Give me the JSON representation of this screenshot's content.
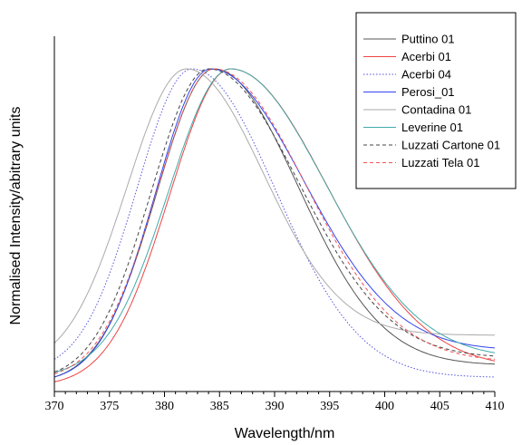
{
  "chart_data": {
    "type": "line",
    "title": "",
    "xlabel": "Wavelength/nm",
    "ylabel": "Normalised Intensity/abitrary units",
    "xlim": [
      370,
      410
    ],
    "ylim": [
      0,
      1
    ],
    "x_ticks": [
      370,
      375,
      380,
      385,
      390,
      395,
      400,
      405,
      410
    ],
    "y_tick_labels_shown": false,
    "grid": false,
    "legend_position": "top-right",
    "series": [
      {
        "name": "Puttino 01",
        "color": "#555555",
        "dash": "solid",
        "peak": 384.5,
        "wl": 5.2,
        "wr": 7.6,
        "y370": 0.045,
        "y410": 0.085
      },
      {
        "name": "Acerbi 01",
        "color": "#ee4444",
        "dash": "solid",
        "peak": 386.0,
        "wl": 5.5,
        "wr": 8.8,
        "y370": 0.03,
        "y410": 0.095
      },
      {
        "name": "Acerbi 04",
        "color": "#5555dd",
        "dash": "dotted",
        "peak": 382.5,
        "wl": 5.0,
        "wr": 7.6,
        "y370": 0.1,
        "y410": 0.045
      },
      {
        "name": "Perosi_01",
        "color": "#3344ee",
        "dash": "solid",
        "peak": 384.2,
        "wl": 5.0,
        "wr": 8.4,
        "y370": 0.045,
        "y410": 0.135
      },
      {
        "name": "Contadina 01",
        "color": "#aaaaaa",
        "dash": "solid",
        "peak": 382.0,
        "wl": 5.4,
        "wr": 7.0,
        "y370": 0.15,
        "y410": 0.175
      },
      {
        "name": "Leverine 01",
        "color": "#44aaaa",
        "dash": "solid",
        "peak": 386.0,
        "wl": 5.6,
        "wr": 8.6,
        "y370": 0.06,
        "y410": 0.12
      },
      {
        "name": "Luzzati Cartone 01",
        "color": "#444444",
        "dash": "dashed",
        "peak": 384.0,
        "wl": 5.2,
        "wr": 8.2,
        "y370": 0.06,
        "y410": 0.11
      },
      {
        "name": "Luzzati Tela 01",
        "color": "#ee5555",
        "dash": "dashed",
        "peak": 384.5,
        "wl": 5.2,
        "wr": 8.3,
        "y370": 0.055,
        "y410": 0.1
      }
    ]
  }
}
